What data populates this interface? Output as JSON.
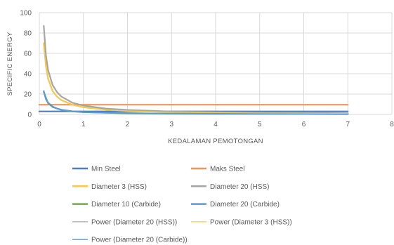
{
  "chart_data": {
    "type": "line",
    "xlabel": "KEDALAMAN PEMOTONGAN",
    "ylabel": "SPECIFIC ENERGY",
    "xlim": [
      0,
      8
    ],
    "ylim": [
      0,
      100
    ],
    "xticks": [
      "0",
      "1",
      "2",
      "3",
      "4",
      "5",
      "6",
      "7",
      "8"
    ],
    "yticks": [
      "0",
      "20",
      "40",
      "60",
      "80",
      "100"
    ],
    "grid": true,
    "legend_position": "bottom",
    "series": [
      {
        "name": "Min Steel",
        "color": "#4a7fc1",
        "width": 2.2,
        "x": [
          0,
          7
        ],
        "y": [
          3,
          3
        ]
      },
      {
        "name": "Maks Steel",
        "color": "#f0955a",
        "width": 2.2,
        "x": [
          0,
          7
        ],
        "y": [
          9.5,
          9.5
        ]
      },
      {
        "name": "Diameter 3 (HSS)",
        "color": "#f7c948",
        "width": 2.2,
        "x": [
          0.1,
          0.15,
          0.2,
          0.3,
          0.4,
          0.5,
          0.75,
          1,
          1.5,
          2,
          3,
          4,
          5,
          6,
          7
        ],
        "y": [
          70,
          47,
          35,
          23,
          17.5,
          14,
          9.5,
          7,
          4.7,
          3.5,
          2.3,
          1.8,
          1.4,
          1.2,
          1
        ]
      },
      {
        "name": "Diameter 20 (HSS)",
        "color": "#a6a6a6",
        "width": 2.2,
        "x": [
          0.1,
          0.15,
          0.2,
          0.3,
          0.4,
          0.5,
          0.75,
          1,
          1.5,
          2,
          3,
          4,
          5,
          6,
          7
        ],
        "y": [
          87,
          58,
          43.5,
          29,
          22,
          17.5,
          11.5,
          8.7,
          5.8,
          4.4,
          2.9,
          2.2,
          1.7,
          1.5,
          1.2
        ]
      },
      {
        "name": "Diameter 10 (Carbide)",
        "color": "#70ad47",
        "width": 2.2,
        "x": [
          0.1,
          0.2,
          0.3,
          0.5,
          0.75,
          1,
          2,
          3,
          4,
          5,
          6,
          7
        ],
        "y": [
          22,
          11,
          7.3,
          4.4,
          2.9,
          2.2,
          1.1,
          0.7,
          0.55,
          0.45,
          0.4,
          0.35
        ]
      },
      {
        "name": "Diameter 20 (Carbide)",
        "color": "#5b9bd5",
        "width": 2.2,
        "x": [
          0.1,
          0.15,
          0.2,
          0.3,
          0.4,
          0.5,
          0.75,
          1,
          2,
          3,
          4,
          5,
          6,
          7
        ],
        "y": [
          23,
          15,
          11.5,
          7.7,
          5.8,
          4.6,
          3.1,
          2.3,
          1.2,
          0.8,
          0.6,
          0.5,
          0.4,
          0.35
        ]
      },
      {
        "name": "Power (Diameter 20 (HSS))",
        "color": "#a6a6a6",
        "width": 1,
        "x": [
          0.1,
          0.15,
          0.2,
          0.3,
          0.4,
          0.5,
          0.75,
          1,
          1.5,
          2,
          3,
          4,
          5,
          6,
          7
        ],
        "y": [
          87,
          58,
          43.5,
          29,
          22,
          17.5,
          11.5,
          8.7,
          5.8,
          4.4,
          2.9,
          2.2,
          1.7,
          1.5,
          1.2
        ]
      },
      {
        "name": "Power (Diameter 3 (HSS))",
        "color": "#f7c948",
        "width": 1,
        "x": [
          0.1,
          0.15,
          0.2,
          0.3,
          0.4,
          0.5,
          0.75,
          1,
          1.5,
          2,
          3,
          4,
          5,
          6,
          7
        ],
        "y": [
          70,
          47,
          35,
          23,
          17.5,
          14,
          9.5,
          7,
          4.7,
          3.5,
          2.3,
          1.8,
          1.4,
          1.2,
          1
        ]
      },
      {
        "name": "Power (Diameter 20 (Carbide))",
        "color": "#5b9bd5",
        "width": 1,
        "x": [
          0.1,
          0.15,
          0.2,
          0.3,
          0.4,
          0.5,
          0.75,
          1,
          2,
          3,
          4,
          5,
          6,
          7
        ],
        "y": [
          23,
          15,
          11.5,
          7.7,
          5.8,
          4.6,
          3.1,
          2.3,
          1.2,
          0.8,
          0.6,
          0.5,
          0.4,
          0.35
        ]
      }
    ]
  }
}
